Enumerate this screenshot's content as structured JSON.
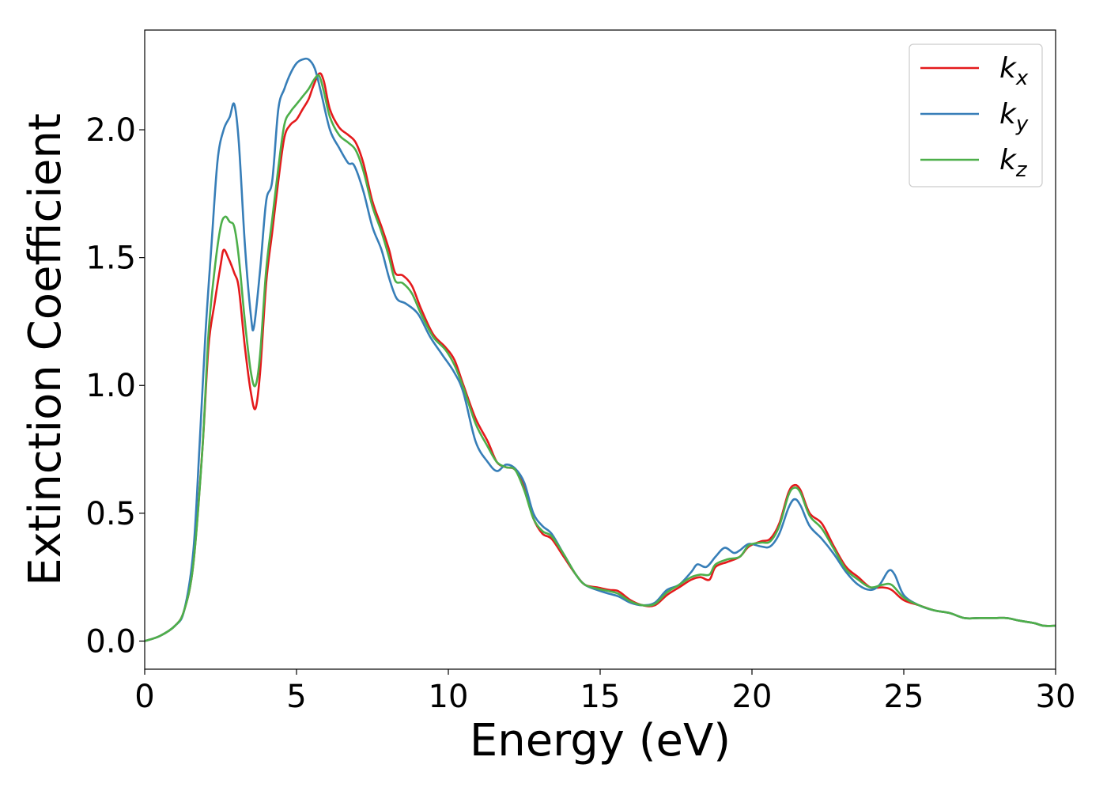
{
  "chart_data": {
    "type": "line",
    "xlabel": "Energy (eV)",
    "ylabel": "Extinction Coefficient",
    "xlim": [
      0,
      30
    ],
    "ylim": [
      -0.11,
      2.39
    ],
    "xticks": [
      0,
      5,
      10,
      15,
      20,
      25,
      30
    ],
    "xtick_labels": [
      "0",
      "5",
      "10",
      "15",
      "20",
      "25",
      "30"
    ],
    "yticks": [
      0.0,
      0.5,
      1.0,
      1.5,
      2.0
    ],
    "ytick_labels": [
      "0.0",
      "0.5",
      "1.0",
      "1.5",
      "2.0"
    ],
    "grid": false,
    "legend_position": "top-right",
    "series": [
      {
        "name": "k_x",
        "legend_main": "k",
        "legend_sub": "x",
        "color": "#e41a1c",
        "points": [
          [
            0,
            0.0
          ],
          [
            0.5,
            0.02
          ],
          [
            1.0,
            0.06
          ],
          [
            1.3,
            0.12
          ],
          [
            1.6,
            0.3
          ],
          [
            1.9,
            0.75
          ],
          [
            2.1,
            1.15
          ],
          [
            2.3,
            1.32
          ],
          [
            2.5,
            1.47
          ],
          [
            2.6,
            1.53
          ],
          [
            2.75,
            1.5
          ],
          [
            2.95,
            1.44
          ],
          [
            3.1,
            1.38
          ],
          [
            3.3,
            1.15
          ],
          [
            3.5,
            0.97
          ],
          [
            3.65,
            0.91
          ],
          [
            3.8,
            1.05
          ],
          [
            4.0,
            1.4
          ],
          [
            4.2,
            1.6
          ],
          [
            4.4,
            1.8
          ],
          [
            4.6,
            1.97
          ],
          [
            4.8,
            2.02
          ],
          [
            5.0,
            2.04
          ],
          [
            5.2,
            2.08
          ],
          [
            5.4,
            2.12
          ],
          [
            5.55,
            2.17
          ],
          [
            5.75,
            2.22
          ],
          [
            5.9,
            2.19
          ],
          [
            6.1,
            2.08
          ],
          [
            6.4,
            2.01
          ],
          [
            6.7,
            1.98
          ],
          [
            6.95,
            1.95
          ],
          [
            7.2,
            1.87
          ],
          [
            7.5,
            1.72
          ],
          [
            7.8,
            1.62
          ],
          [
            8.05,
            1.53
          ],
          [
            8.25,
            1.44
          ],
          [
            8.5,
            1.43
          ],
          [
            8.8,
            1.39
          ],
          [
            9.1,
            1.3
          ],
          [
            9.5,
            1.2
          ],
          [
            9.9,
            1.15
          ],
          [
            10.2,
            1.1
          ],
          [
            10.5,
            1.0
          ],
          [
            10.9,
            0.87
          ],
          [
            11.3,
            0.78
          ],
          [
            11.6,
            0.7
          ],
          [
            11.9,
            0.68
          ],
          [
            12.2,
            0.67
          ],
          [
            12.5,
            0.6
          ],
          [
            12.8,
            0.48
          ],
          [
            13.1,
            0.42
          ],
          [
            13.4,
            0.4
          ],
          [
            13.8,
            0.33
          ],
          [
            14.2,
            0.26
          ],
          [
            14.5,
            0.22
          ],
          [
            14.9,
            0.21
          ],
          [
            15.3,
            0.2
          ],
          [
            15.6,
            0.195
          ],
          [
            16.0,
            0.16
          ],
          [
            16.4,
            0.14
          ],
          [
            16.8,
            0.14
          ],
          [
            17.2,
            0.18
          ],
          [
            17.6,
            0.21
          ],
          [
            18.0,
            0.24
          ],
          [
            18.3,
            0.25
          ],
          [
            18.6,
            0.24
          ],
          [
            18.8,
            0.29
          ],
          [
            19.2,
            0.31
          ],
          [
            19.6,
            0.33
          ],
          [
            19.9,
            0.37
          ],
          [
            20.3,
            0.39
          ],
          [
            20.6,
            0.4
          ],
          [
            20.9,
            0.46
          ],
          [
            21.2,
            0.58
          ],
          [
            21.4,
            0.61
          ],
          [
            21.6,
            0.59
          ],
          [
            21.9,
            0.5
          ],
          [
            22.3,
            0.46
          ],
          [
            22.7,
            0.37
          ],
          [
            23.1,
            0.29
          ],
          [
            23.5,
            0.25
          ],
          [
            23.9,
            0.21
          ],
          [
            24.3,
            0.21
          ],
          [
            24.6,
            0.2
          ],
          [
            25.0,
            0.16
          ],
          [
            25.5,
            0.14
          ],
          [
            26.0,
            0.12
          ],
          [
            26.5,
            0.11
          ],
          [
            27.0,
            0.09
          ],
          [
            27.5,
            0.09
          ],
          [
            28.0,
            0.09
          ],
          [
            28.4,
            0.09
          ],
          [
            28.8,
            0.08
          ],
          [
            29.3,
            0.07
          ],
          [
            29.6,
            0.06
          ],
          [
            30,
            0.06
          ]
        ]
      },
      {
        "name": "k_y",
        "legend_main": "k",
        "legend_sub": "y",
        "color": "#377eb8",
        "points": [
          [
            0,
            0.0
          ],
          [
            0.5,
            0.02
          ],
          [
            1.0,
            0.06
          ],
          [
            1.3,
            0.12
          ],
          [
            1.6,
            0.35
          ],
          [
            1.8,
            0.75
          ],
          [
            2.0,
            1.2
          ],
          [
            2.2,
            1.55
          ],
          [
            2.4,
            1.88
          ],
          [
            2.6,
            2.0
          ],
          [
            2.8,
            2.05
          ],
          [
            2.95,
            2.1
          ],
          [
            3.1,
            1.95
          ],
          [
            3.3,
            1.55
          ],
          [
            3.5,
            1.27
          ],
          [
            3.6,
            1.23
          ],
          [
            3.8,
            1.45
          ],
          [
            4.0,
            1.72
          ],
          [
            4.2,
            1.8
          ],
          [
            4.4,
            2.08
          ],
          [
            4.6,
            2.16
          ],
          [
            4.8,
            2.22
          ],
          [
            5.0,
            2.26
          ],
          [
            5.2,
            2.275
          ],
          [
            5.4,
            2.275
          ],
          [
            5.6,
            2.24
          ],
          [
            5.8,
            2.15
          ],
          [
            6.1,
            2.0
          ],
          [
            6.4,
            1.93
          ],
          [
            6.7,
            1.87
          ],
          [
            6.9,
            1.86
          ],
          [
            7.2,
            1.76
          ],
          [
            7.5,
            1.62
          ],
          [
            7.8,
            1.53
          ],
          [
            8.05,
            1.42
          ],
          [
            8.3,
            1.34
          ],
          [
            8.6,
            1.32
          ],
          [
            9.0,
            1.28
          ],
          [
            9.4,
            1.19
          ],
          [
            9.8,
            1.12
          ],
          [
            10.2,
            1.05
          ],
          [
            10.5,
            0.97
          ],
          [
            10.9,
            0.78
          ],
          [
            11.3,
            0.7
          ],
          [
            11.6,
            0.665
          ],
          [
            11.9,
            0.69
          ],
          [
            12.2,
            0.675
          ],
          [
            12.5,
            0.62
          ],
          [
            12.8,
            0.5
          ],
          [
            13.1,
            0.45
          ],
          [
            13.4,
            0.42
          ],
          [
            13.8,
            0.34
          ],
          [
            14.2,
            0.26
          ],
          [
            14.5,
            0.22
          ],
          [
            14.9,
            0.2
          ],
          [
            15.3,
            0.185
          ],
          [
            15.6,
            0.175
          ],
          [
            16.0,
            0.15
          ],
          [
            16.4,
            0.14
          ],
          [
            16.8,
            0.15
          ],
          [
            17.2,
            0.2
          ],
          [
            17.6,
            0.22
          ],
          [
            18.0,
            0.27
          ],
          [
            18.2,
            0.3
          ],
          [
            18.5,
            0.29
          ],
          [
            18.8,
            0.33
          ],
          [
            19.1,
            0.365
          ],
          [
            19.4,
            0.345
          ],
          [
            19.6,
            0.355
          ],
          [
            19.9,
            0.38
          ],
          [
            20.3,
            0.37
          ],
          [
            20.6,
            0.37
          ],
          [
            20.9,
            0.42
          ],
          [
            21.2,
            0.52
          ],
          [
            21.4,
            0.555
          ],
          [
            21.6,
            0.53
          ],
          [
            21.9,
            0.45
          ],
          [
            22.3,
            0.4
          ],
          [
            22.7,
            0.34
          ],
          [
            23.1,
            0.27
          ],
          [
            23.5,
            0.22
          ],
          [
            23.9,
            0.2
          ],
          [
            24.2,
            0.22
          ],
          [
            24.5,
            0.275
          ],
          [
            24.7,
            0.26
          ],
          [
            25.0,
            0.18
          ],
          [
            25.5,
            0.14
          ],
          [
            26.0,
            0.12
          ],
          [
            26.5,
            0.11
          ],
          [
            27.0,
            0.09
          ],
          [
            27.5,
            0.09
          ],
          [
            28.0,
            0.09
          ],
          [
            28.4,
            0.09
          ],
          [
            28.8,
            0.08
          ],
          [
            29.3,
            0.07
          ],
          [
            29.6,
            0.06
          ],
          [
            30,
            0.06
          ]
        ]
      },
      {
        "name": "k_z",
        "legend_main": "k",
        "legend_sub": "z",
        "color": "#4daf4a",
        "points": [
          [
            0,
            0.0
          ],
          [
            0.5,
            0.02
          ],
          [
            1.0,
            0.06
          ],
          [
            1.3,
            0.12
          ],
          [
            1.6,
            0.3
          ],
          [
            1.9,
            0.75
          ],
          [
            2.1,
            1.2
          ],
          [
            2.3,
            1.45
          ],
          [
            2.5,
            1.62
          ],
          [
            2.65,
            1.66
          ],
          [
            2.8,
            1.64
          ],
          [
            2.95,
            1.62
          ],
          [
            3.1,
            1.5
          ],
          [
            3.3,
            1.25
          ],
          [
            3.5,
            1.05
          ],
          [
            3.65,
            1.0
          ],
          [
            3.8,
            1.12
          ],
          [
            4.0,
            1.45
          ],
          [
            4.2,
            1.65
          ],
          [
            4.4,
            1.85
          ],
          [
            4.6,
            2.02
          ],
          [
            4.8,
            2.07
          ],
          [
            5.0,
            2.1
          ],
          [
            5.2,
            2.13
          ],
          [
            5.4,
            2.16
          ],
          [
            5.6,
            2.2
          ],
          [
            5.75,
            2.21
          ],
          [
            5.9,
            2.15
          ],
          [
            6.1,
            2.05
          ],
          [
            6.4,
            1.98
          ],
          [
            6.7,
            1.95
          ],
          [
            6.95,
            1.92
          ],
          [
            7.2,
            1.84
          ],
          [
            7.5,
            1.7
          ],
          [
            7.8,
            1.6
          ],
          [
            8.05,
            1.5
          ],
          [
            8.25,
            1.41
          ],
          [
            8.5,
            1.4
          ],
          [
            8.8,
            1.36
          ],
          [
            9.1,
            1.28
          ],
          [
            9.5,
            1.19
          ],
          [
            9.9,
            1.14
          ],
          [
            10.2,
            1.08
          ],
          [
            10.5,
            0.99
          ],
          [
            10.9,
            0.85
          ],
          [
            11.3,
            0.76
          ],
          [
            11.6,
            0.7
          ],
          [
            11.9,
            0.68
          ],
          [
            12.2,
            0.67
          ],
          [
            12.5,
            0.59
          ],
          [
            12.8,
            0.48
          ],
          [
            13.1,
            0.43
          ],
          [
            13.4,
            0.41
          ],
          [
            13.8,
            0.34
          ],
          [
            14.2,
            0.26
          ],
          [
            14.5,
            0.22
          ],
          [
            14.9,
            0.205
          ],
          [
            15.3,
            0.195
          ],
          [
            15.6,
            0.185
          ],
          [
            16.0,
            0.155
          ],
          [
            16.4,
            0.14
          ],
          [
            16.8,
            0.145
          ],
          [
            17.2,
            0.19
          ],
          [
            17.6,
            0.22
          ],
          [
            18.0,
            0.25
          ],
          [
            18.3,
            0.26
          ],
          [
            18.6,
            0.26
          ],
          [
            18.8,
            0.3
          ],
          [
            19.2,
            0.32
          ],
          [
            19.6,
            0.33
          ],
          [
            19.9,
            0.375
          ],
          [
            20.3,
            0.385
          ],
          [
            20.6,
            0.39
          ],
          [
            20.9,
            0.45
          ],
          [
            21.2,
            0.57
          ],
          [
            21.4,
            0.6
          ],
          [
            21.6,
            0.58
          ],
          [
            21.9,
            0.49
          ],
          [
            22.3,
            0.44
          ],
          [
            22.7,
            0.36
          ],
          [
            23.1,
            0.28
          ],
          [
            23.5,
            0.24
          ],
          [
            23.9,
            0.21
          ],
          [
            24.3,
            0.22
          ],
          [
            24.6,
            0.22
          ],
          [
            25.0,
            0.17
          ],
          [
            25.5,
            0.14
          ],
          [
            26.0,
            0.12
          ],
          [
            26.5,
            0.11
          ],
          [
            27.0,
            0.09
          ],
          [
            27.5,
            0.09
          ],
          [
            28.0,
            0.09
          ],
          [
            28.4,
            0.09
          ],
          [
            28.8,
            0.08
          ],
          [
            29.3,
            0.07
          ],
          [
            29.6,
            0.06
          ],
          [
            30,
            0.06
          ]
        ]
      }
    ]
  }
}
